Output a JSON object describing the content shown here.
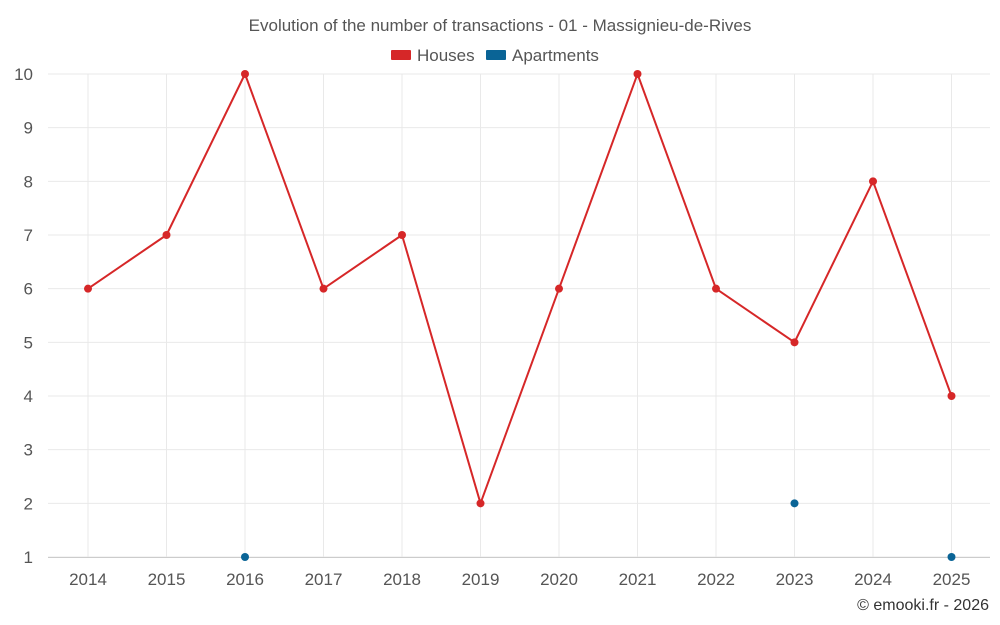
{
  "chart_data": {
    "type": "line",
    "title": "Evolution of the number of transactions - 01 - Massignieu-de-Rives",
    "categories": [
      "2014",
      "2015",
      "2016",
      "2017",
      "2018",
      "2019",
      "2020",
      "2021",
      "2022",
      "2023",
      "2024",
      "2025"
    ],
    "series": [
      {
        "name": "Houses",
        "color": "#d62728",
        "values": [
          6,
          7,
          10,
          6,
          7,
          2,
          6,
          10,
          6,
          5,
          8,
          4
        ]
      },
      {
        "name": "Apartments",
        "color": "#0a6496",
        "values": [
          null,
          null,
          1,
          null,
          null,
          null,
          null,
          null,
          null,
          2,
          null,
          1
        ]
      }
    ],
    "yticks": [
      1,
      2,
      3,
      4,
      5,
      6,
      7,
      8,
      9,
      10
    ],
    "ylim": [
      1,
      10
    ],
    "xlabel": "",
    "ylabel": "",
    "grid": true,
    "legend_position": "top-center"
  },
  "credit": "© emooki.fr - 2026"
}
